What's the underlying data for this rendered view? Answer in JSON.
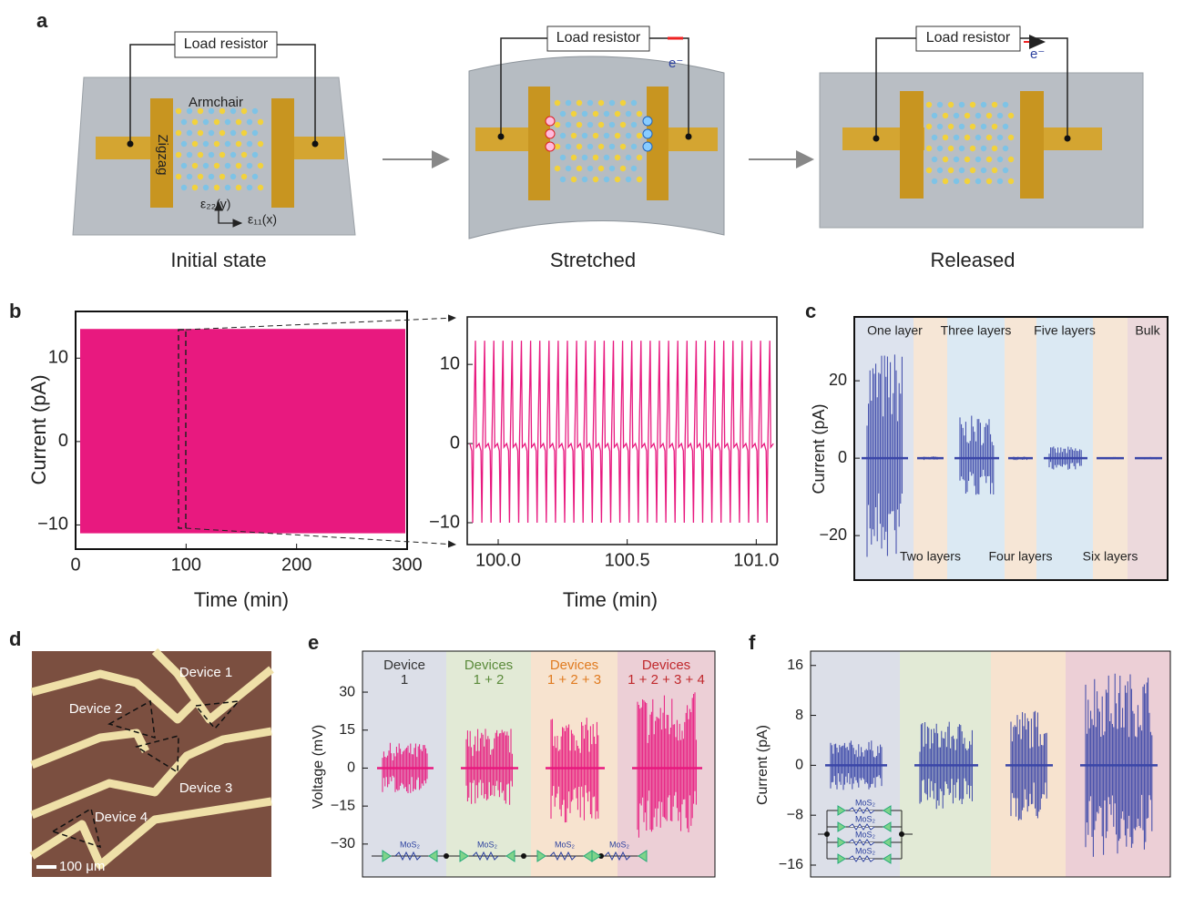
{
  "panels": {
    "a": {
      "label": "a",
      "resistors": [
        "Load resistor",
        "Load resistor",
        "Load resistor"
      ],
      "armchair": "Armchair",
      "zigzag": "Zigzag",
      "strain_y": "ε₂₂(y)",
      "strain_x": "ε₁₁(x)",
      "electrons": [
        "e⁻",
        "e⁻"
      ],
      "captions": [
        "Initial state",
        "Stretched",
        "Released"
      ]
    },
    "b": {
      "label": "b",
      "main": {
        "ylabel": "Current (pA)",
        "xlabel": "Time (min)",
        "xlim": [
          0,
          300
        ],
        "ylim": [
          -12.9,
          15.6
        ],
        "xticks": [
          0,
          100,
          200,
          300
        ],
        "yticks": [
          {
            "value": -10,
            "label": "−10"
          },
          0,
          10
        ],
        "envelope": [
          -11,
          13.5
        ]
      },
      "zoom": {
        "xlabel": "Time (min)",
        "xlim": [
          99.88,
          101.08
        ],
        "ylim": [
          -12.76,
          16
        ],
        "xticks": [
          {
            "value": 100,
            "label": "100.0"
          },
          {
            "value": 100.5,
            "label": "100.5"
          },
          {
            "value": 101,
            "label": "101.0"
          }
        ],
        "yticks": [
          {
            "value": -10,
            "label": "−10"
          },
          0,
          10
        ],
        "spike_max": 13,
        "spike_min": -10
      }
    },
    "c": {
      "label": "c",
      "ylabel": "Current (pA)",
      "ylim": [
        -31.5,
        36.5
      ],
      "yticks": [
        {
          "value": -20,
          "label": "−20"
        },
        0,
        20
      ],
      "layers": [
        {
          "name": "One layer",
          "max": 28,
          "min": -27
        },
        {
          "name": "Two layers",
          "max": 0.5,
          "min": -0.5
        },
        {
          "name": "Three layers",
          "max": 11,
          "min": -10
        },
        {
          "name": "Four layers",
          "max": 0.5,
          "min": -0.5
        },
        {
          "name": "Five layers",
          "max": 3,
          "min": -3
        },
        {
          "name": "Six layers",
          "max": 0.3,
          "min": -0.3
        },
        {
          "name": "Bulk",
          "max": 0.3,
          "min": -0.3
        }
      ]
    },
    "d": {
      "label": "d",
      "devices": [
        "Device 1",
        "Device 2",
        "Device 3",
        "Device 4"
      ],
      "scale": "100 μm"
    },
    "e": {
      "label": "e",
      "ylabel": "Voltage (mV)",
      "ylim": [
        -43,
        46.2
      ],
      "yticks": [
        {
          "value": -30,
          "label": "−30"
        },
        {
          "value": -15,
          "label": "−15"
        },
        0,
        15,
        30
      ],
      "groups": [
        {
          "title": "Device",
          "devices": "1",
          "color": "#333333",
          "max": 10,
          "min": -10
        },
        {
          "title": "Devices",
          "devices": "1 + 2",
          "color": "#5a8a3a",
          "max": 16,
          "min": -15
        },
        {
          "title": "Devices",
          "devices": "1 + 2 + 3",
          "color": "#e07b20",
          "max": 20,
          "min": -22
        },
        {
          "title": "Devices",
          "devices": "1 + 2 + 3 + 4",
          "color": "#c0282c",
          "max": 30,
          "min": -28
        }
      ],
      "circuit": [
        "MoS₂",
        "MoS₂",
        "MoS₂",
        "MoS₂"
      ]
    },
    "f": {
      "label": "f",
      "ylabel": "Current (pA)",
      "ylim": [
        -17.9,
        18.3
      ],
      "yticks": [
        {
          "value": -16,
          "label": "−16"
        },
        {
          "value": -8,
          "label": "−8"
        },
        0,
        8,
        16
      ],
      "groups": [
        {
          "max": 4,
          "min": -4
        },
        {
          "max": 7,
          "min": -7
        },
        {
          "max": 9,
          "min": -9
        },
        {
          "max": 15,
          "min": -15
        }
      ],
      "circuit": [
        "MoS₂",
        "MoS₂",
        "MoS₂",
        "MoS₂"
      ]
    }
  }
}
